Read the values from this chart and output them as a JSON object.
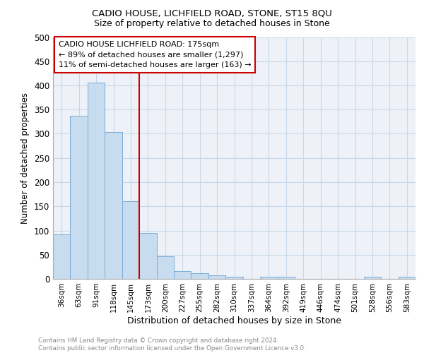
{
  "title1": "CADIO HOUSE, LICHFIELD ROAD, STONE, ST15 8QU",
  "title2": "Size of property relative to detached houses in Stone",
  "xlabel": "Distribution of detached houses by size in Stone",
  "ylabel": "Number of detached properties",
  "bin_labels": [
    "36sqm",
    "63sqm",
    "91sqm",
    "118sqm",
    "145sqm",
    "173sqm",
    "200sqm",
    "227sqm",
    "255sqm",
    "282sqm",
    "310sqm",
    "337sqm",
    "364sqm",
    "392sqm",
    "419sqm",
    "446sqm",
    "474sqm",
    "501sqm",
    "528sqm",
    "556sqm",
    "583sqm"
  ],
  "bar_heights": [
    92,
    337,
    406,
    304,
    161,
    95,
    46,
    16,
    12,
    7,
    5,
    0,
    5,
    4,
    0,
    0,
    0,
    0,
    4,
    0,
    5
  ],
  "bar_color": "#c8dcf0",
  "bar_edge_color": "#7aacd6",
  "vline_x": 4.5,
  "vline_color": "#cc0000",
  "ylim": [
    0,
    500
  ],
  "yticks": [
    0,
    50,
    100,
    150,
    200,
    250,
    300,
    350,
    400,
    450,
    500
  ],
  "annotation_lines": [
    "CADIO HOUSE LICHFIELD ROAD: 175sqm",
    "← 89% of detached houses are smaller (1,297)",
    "11% of semi-detached houses are larger (163) →"
  ],
  "annotation_box_color": "#cc0000",
  "footer": "Contains HM Land Registry data © Crown copyright and database right 2024.\nContains public sector information licensed under the Open Government Licence v3.0.",
  "grid_color": "#c8d8ea",
  "background_color": "#eef2f8"
}
